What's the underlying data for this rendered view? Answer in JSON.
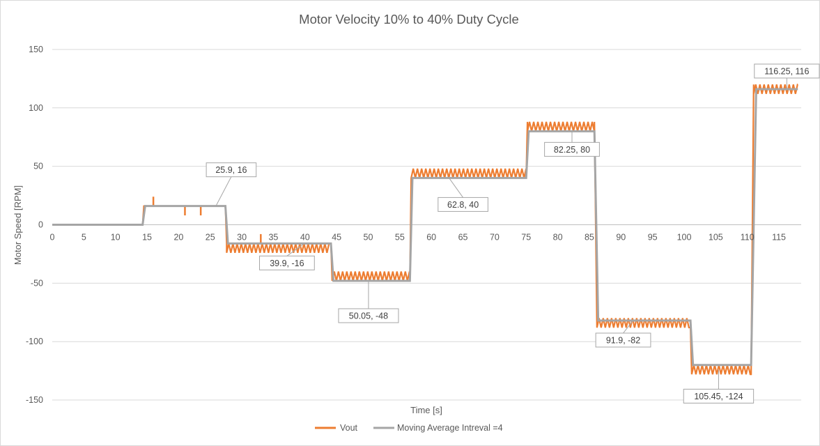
{
  "chart_data": {
    "type": "line",
    "title": "Motor Velocity 10% to 40% Duty Cycle",
    "xlabel": "Time [s]",
    "ylabel": "Motor Speed [RPM]",
    "xlim": [
      0,
      118
    ],
    "ylim": [
      -150,
      150
    ],
    "x_ticks": [
      0,
      5,
      10,
      15,
      20,
      25,
      30,
      35,
      40,
      45,
      50,
      55,
      60,
      65,
      70,
      75,
      80,
      85,
      90,
      95,
      100,
      105,
      110,
      115
    ],
    "y_ticks": [
      -150,
      -100,
      -50,
      0,
      50,
      100,
      150
    ],
    "grid": "horizontal",
    "legend_position": "bottom",
    "series": [
      {
        "name": "Vout",
        "color": "#ED7D31",
        "segments": [
          {
            "x0": 0,
            "x1": 14.3,
            "level": 0,
            "ripple": [
              0,
              0
            ],
            "spikes": []
          },
          {
            "x0": 14.5,
            "x1": 27.4,
            "level": 16,
            "ripple": [
              16,
              16
            ],
            "spikes": [
              [
                16,
                24
              ],
              [
                21,
                8
              ],
              [
                23.5,
                8
              ]
            ]
          },
          {
            "x0": 27.6,
            "x1": 44.1,
            "level": -16,
            "ripple": [
              -24,
              -16
            ],
            "spikes": [
              [
                33,
                -8
              ]
            ]
          },
          {
            "x0": 44.3,
            "x1": 56.6,
            "level": -48,
            "ripple": [
              -48,
              -40
            ],
            "spikes": []
          },
          {
            "x0": 56.8,
            "x1": 75.0,
            "level": 40,
            "ripple": [
              40,
              48
            ],
            "spikes": []
          },
          {
            "x0": 75.2,
            "x1": 85.8,
            "level": 88,
            "ripple": [
              80,
              88
            ],
            "spikes": []
          },
          {
            "x0": 86.2,
            "x1": 101.0,
            "level": -88,
            "ripple": [
              -88,
              -80
            ],
            "spikes": []
          },
          {
            "x0": 101.2,
            "x1": 110.6,
            "level": -128,
            "ripple": [
              -128,
              -120
            ],
            "spikes": []
          },
          {
            "x0": 111.0,
            "x1": 118,
            "level": 120,
            "ripple": [
              112,
              120
            ],
            "spikes": []
          }
        ]
      },
      {
        "name": "Moving Average Intreval =4",
        "color": "#A5A5A5",
        "steps": [
          [
            0,
            0
          ],
          [
            14.3,
            0
          ],
          [
            14.7,
            16
          ],
          [
            27.4,
            16
          ],
          [
            27.8,
            -16
          ],
          [
            44.1,
            -16
          ],
          [
            44.5,
            -48
          ],
          [
            56.6,
            -48
          ],
          [
            57.0,
            40
          ],
          [
            75.0,
            40
          ],
          [
            75.4,
            80
          ],
          [
            85.8,
            80
          ],
          [
            86.4,
            -82
          ],
          [
            101.0,
            -82
          ],
          [
            101.4,
            -120
          ],
          [
            110.6,
            -120
          ],
          [
            111.4,
            116
          ],
          [
            118,
            116
          ]
        ]
      }
    ],
    "data_labels": [
      {
        "text": "25.9, 16",
        "x": 25.9,
        "y": 16
      },
      {
        "text": "39.9, -16",
        "x": 39.9,
        "y": -16
      },
      {
        "text": "50.05, -48",
        "x": 50.05,
        "y": -48
      },
      {
        "text": "62.8, 40",
        "x": 62.8,
        "y": 40
      },
      {
        "text": "82.25, 80",
        "x": 82.25,
        "y": 80
      },
      {
        "text": "91.9, -82",
        "x": 91.9,
        "y": -82
      },
      {
        "text": "105.45, -124",
        "x": 105.45,
        "y": -124
      },
      {
        "text": "116.25, 116",
        "x": 116.25,
        "y": 116
      }
    ]
  }
}
